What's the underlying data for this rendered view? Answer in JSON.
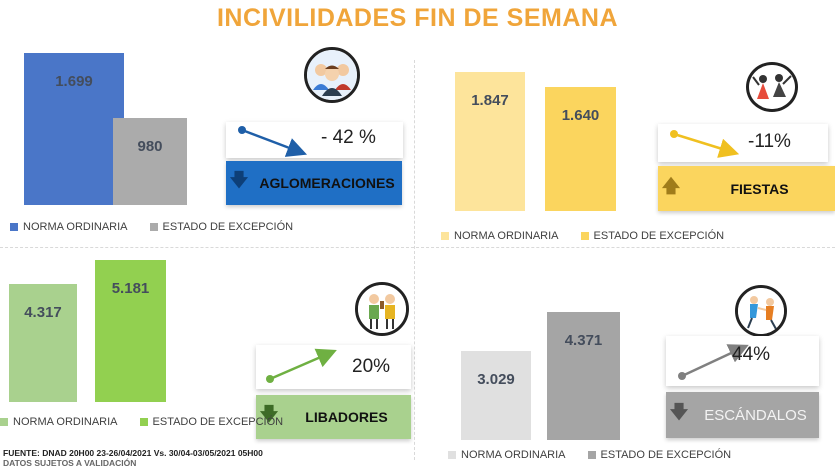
{
  "title": "INCIVILIDADES FIN DE SEMANA",
  "chart_data": [
    {
      "type": "bar",
      "id": "aglomeraciones",
      "categories": [
        "NORMA ORDINARIA",
        "ESTADO DE EXCEPCIÓN"
      ],
      "values": [
        1699,
        980
      ],
      "value_labels": [
        "1.699",
        "980"
      ],
      "colors": [
        "#4a76c8",
        "#ababab"
      ],
      "legend": [
        "NORMA ORDINARIA",
        "ESTADO DE EXCEPCIÓN"
      ],
      "legend_placement": "bottom",
      "change_label": "- 42 %",
      "category_label": "AGLOMERACIONES",
      "ylim": [
        0,
        1850
      ]
    },
    {
      "type": "bar",
      "id": "fiestas",
      "categories": [
        "NORMA ORDINARIA",
        "ESTADO DE EXCEPCIÓN"
      ],
      "values": [
        1847,
        1640
      ],
      "value_labels": [
        "1.847",
        "1.640"
      ],
      "colors": [
        "#fde49b",
        "#fbd55e"
      ],
      "legend": [
        "NORMA ORDINARIA",
        "ESTADO DE EXCEPCIÓN"
      ],
      "legend_placement": "bottom",
      "change_label": "-11%",
      "category_label": "FIESTAS",
      "ylim": [
        0,
        2000
      ]
    },
    {
      "type": "bar",
      "id": "libadores",
      "categories": [
        "NORMA ORDINARIA",
        "ESTADO DE EXCEPCIÓN"
      ],
      "values": [
        4317,
        5181
      ],
      "value_labels": [
        "4.317",
        "5.181"
      ],
      "colors": [
        "#a9d18e",
        "#92d050"
      ],
      "legend": [
        "NORMA ORDINARIA",
        "ESTADO DE EXCEPCIÓN"
      ],
      "legend_placement": "bottom",
      "change_label": "20%",
      "category_label": "LIBADORES",
      "ylim": [
        0,
        5300
      ]
    },
    {
      "type": "bar",
      "id": "escandalos",
      "categories": [
        "NORMA ORDINARIA",
        "ESTADO DE EXCEPCIÓN"
      ],
      "values": [
        3029,
        4371
      ],
      "value_labels": [
        "3.029",
        "4.371"
      ],
      "colors": [
        "#e0e0e0",
        "#a5a5a5"
      ],
      "legend": [
        "NORMA ORDINARIA",
        "ESTADO DE EXCEPCIÓN"
      ],
      "legend_placement": "bottom",
      "change_label": "44%",
      "category_label": "ESCÁNDALOS",
      "ylim": [
        0,
        5300
      ]
    }
  ],
  "footer": {
    "source": "FUENTE: DNAD 20H00  23-26/04/2021 Vs. 30/04-03/05/2021 05H00",
    "note": "DATOS SUJETOS A VALIDACIÓN"
  },
  "colors": {
    "title": "#f0a53a",
    "tag_aglomeraciones": "#1f6fc5",
    "tag_fiestas": "#fbd55e",
    "tag_libadores": "#a9d18e",
    "tag_escandalos": "#a5a5a5",
    "arrow_down": "#1f5fa8",
    "arrow_fiestas": "#f0c020",
    "arrow_libadores": "#6fb042",
    "arrow_escandalos": "#808080"
  },
  "icons": {
    "aglomeraciones": "crowd-icon",
    "fiestas": "party-icon",
    "libadores": "drinkers-icon",
    "escandalos": "brawl-icon",
    "down": "down-arrow-icon",
    "up": "up-arrow-icon"
  }
}
